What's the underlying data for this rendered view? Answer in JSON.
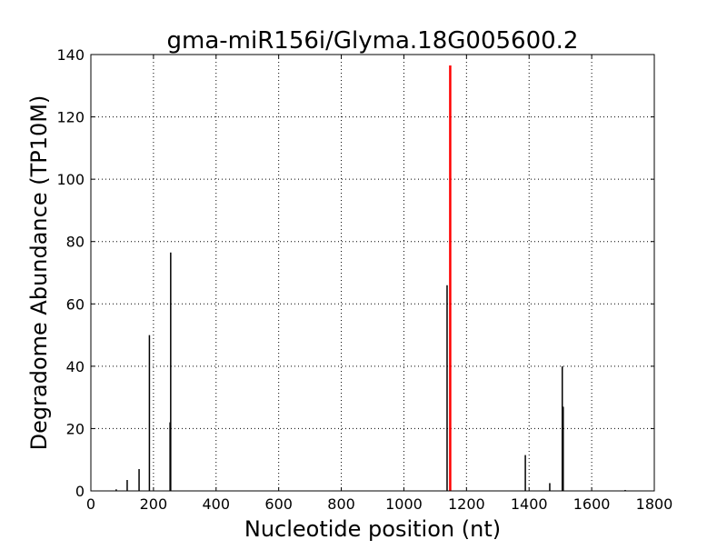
{
  "chart_data": {
    "type": "bar",
    "title": "gma-miR156i/Glyma.18G005600.2",
    "xlabel": "Nucleotide position (nt)",
    "ylabel": "Degradome Abundance (TP10M)",
    "xlim": [
      0,
      1800
    ],
    "ylim": [
      0,
      140
    ],
    "xticks": [
      0,
      200,
      400,
      600,
      800,
      1000,
      1200,
      1400,
      1600,
      1800
    ],
    "yticks": [
      0,
      20,
      40,
      60,
      80,
      100,
      120,
      140
    ],
    "grid": true,
    "colors": {
      "default": "#000000",
      "highlight": "#ff0000"
    },
    "points": [
      {
        "x": 81,
        "y": 0.5
      },
      {
        "x": 116,
        "y": 3.5
      },
      {
        "x": 154,
        "y": 7
      },
      {
        "x": 187,
        "y": 50
      },
      {
        "x": 253,
        "y": 22
      },
      {
        "x": 255,
        "y": 76.5
      },
      {
        "x": 1138,
        "y": 66
      },
      {
        "x": 1148,
        "y": 136.5,
        "highlight": true
      },
      {
        "x": 1388,
        "y": 11.5
      },
      {
        "x": 1466,
        "y": 2.5
      },
      {
        "x": 1506,
        "y": 40
      },
      {
        "x": 1509,
        "y": 27
      },
      {
        "x": 1707,
        "y": 0.3
      }
    ]
  }
}
